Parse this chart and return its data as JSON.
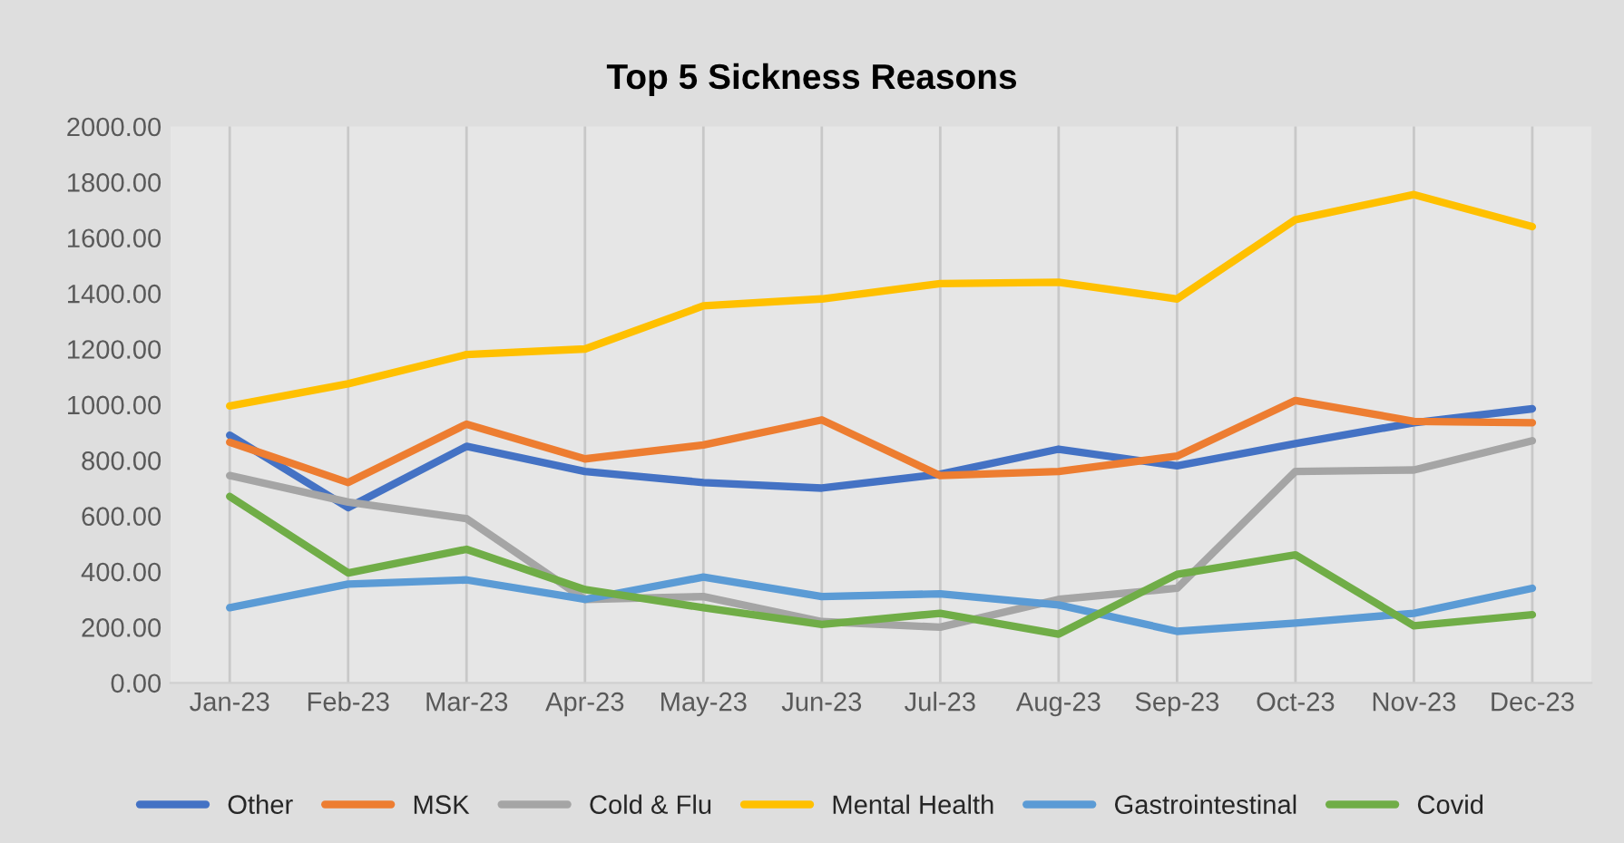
{
  "chart_data": {
    "type": "line",
    "title": "Top 5 Sickness Reasons",
    "categories": [
      "Jan-23",
      "Feb-23",
      "Mar-23",
      "Apr-23",
      "May-23",
      "Jun-23",
      "Jul-23",
      "Aug-23",
      "Sep-23",
      "Oct-23",
      "Nov-23",
      "Dec-23"
    ],
    "series": [
      {
        "name": "Other",
        "color": "#4472c4",
        "values": [
          890,
          630,
          850,
          760,
          720,
          700,
          750,
          840,
          780,
          860,
          935,
          985
        ]
      },
      {
        "name": "MSK",
        "color": "#ed7d31",
        "values": [
          865,
          720,
          930,
          805,
          855,
          945,
          745,
          760,
          815,
          1015,
          940,
          935
        ]
      },
      {
        "name": "Cold & Flu",
        "color": "#a5a5a5",
        "values": [
          745,
          650,
          590,
          300,
          310,
          220,
          200,
          300,
          340,
          760,
          765,
          870
        ]
      },
      {
        "name": "Mental Health",
        "color": "#ffc000",
        "values": [
          995,
          1075,
          1180,
          1200,
          1355,
          1380,
          1435,
          1440,
          1380,
          1665,
          1755,
          1640
        ]
      },
      {
        "name": "Gastrointestinal",
        "color": "#5b9bd5",
        "values": [
          270,
          355,
          370,
          300,
          380,
          310,
          320,
          280,
          185,
          215,
          250,
          340
        ]
      },
      {
        "name": "Covid",
        "color": "#70ad47",
        "values": [
          670,
          395,
          480,
          335,
          270,
          210,
          250,
          175,
          390,
          460,
          205,
          245
        ]
      }
    ],
    "ylim": [
      0,
      2000
    ],
    "yticks": [
      {
        "value": 0,
        "label": "0.00"
      },
      {
        "value": 200,
        "label": "200.00"
      },
      {
        "value": 400,
        "label": "400.00"
      },
      {
        "value": 600,
        "label": "600.00"
      },
      {
        "value": 800,
        "label": "800.00"
      },
      {
        "value": 1000,
        "label": "1000.00"
      },
      {
        "value": 1200,
        "label": "1200.00"
      },
      {
        "value": 1400,
        "label": "1400.00"
      },
      {
        "value": 1600,
        "label": "1600.00"
      },
      {
        "value": 1800,
        "label": "1800.00"
      },
      {
        "value": 2000,
        "label": "2000.00"
      }
    ],
    "grid": "x",
    "legend": "bottom",
    "marker": "none",
    "line_style": "solid"
  }
}
